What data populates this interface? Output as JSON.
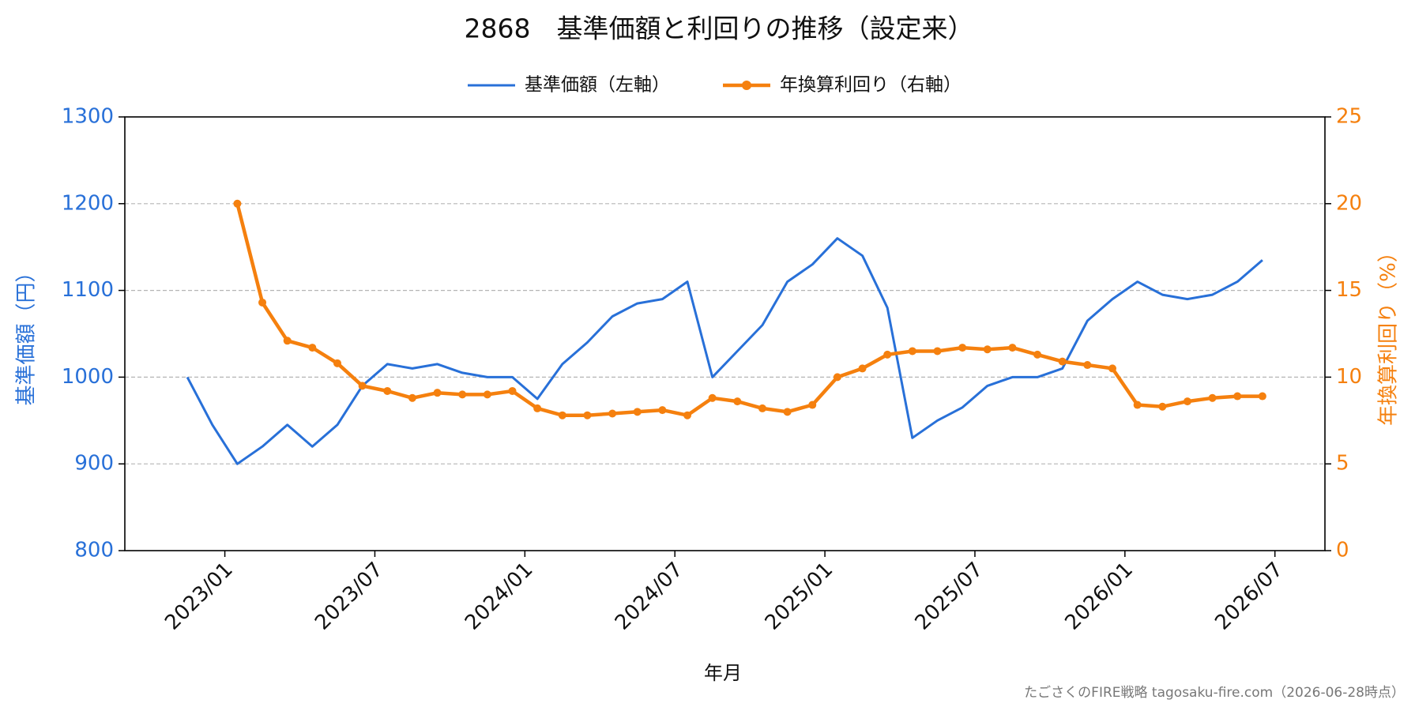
{
  "chart_data": {
    "type": "line",
    "title": "2868　基準価額と利回りの推移（設定来）",
    "xlabel": "年月",
    "ylabel": "基準価額（円）",
    "y2label": "年換算利回り（%）",
    "footer": "たごさくのFIRE戦略 tagosaku-fire.com（2026-06-28時点）",
    "x": [
      "2022/11",
      "2022/12",
      "2023/01",
      "2023/02",
      "2023/03",
      "2023/04",
      "2023/05",
      "2023/06",
      "2023/07",
      "2023/08",
      "2023/09",
      "2023/10",
      "2023/11",
      "2023/12",
      "2024/01",
      "2024/02",
      "2024/03",
      "2024/04",
      "2024/05",
      "2024/06",
      "2024/07",
      "2024/08",
      "2024/09",
      "2024/10",
      "2024/11",
      "2024/12",
      "2025/01",
      "2025/02",
      "2025/03",
      "2025/04",
      "2025/05",
      "2025/06",
      "2025/07",
      "2025/08",
      "2025/09",
      "2025/10",
      "2025/11",
      "2025/12",
      "2026/01",
      "2026/02",
      "2026/03",
      "2026/04",
      "2026/05",
      "2026/06"
    ],
    "xlim": [
      "2022/09",
      "2026/09"
    ],
    "xticks": [
      "2023/01",
      "2023/07",
      "2024/01",
      "2024/07",
      "2025/01",
      "2025/07",
      "2026/01",
      "2026/07"
    ],
    "ylim": [
      800,
      1300
    ],
    "yticks": [
      800,
      900,
      1000,
      1100,
      1200,
      1300
    ],
    "y2lim": [
      0,
      25
    ],
    "y2ticks": [
      0,
      5,
      10,
      15,
      20,
      25
    ],
    "grid": true,
    "legend": "top",
    "series": [
      {
        "name": "基準価額（左軸）",
        "color": "#2870d8",
        "values": [
          1000,
          945,
          900,
          920,
          945,
          920,
          945,
          990,
          1015,
          1010,
          1015,
          1005,
          1000,
          1000,
          975,
          1015,
          1040,
          1070,
          1085,
          1090,
          1110,
          1000,
          1030,
          1060,
          1110,
          1130,
          1160,
          1140,
          1080,
          930,
          950,
          965,
          990,
          1000,
          1000,
          1010,
          1065,
          1090,
          1110,
          1095,
          1090,
          1095,
          1110,
          1135
        ]
      },
      {
        "name": "年換算利回り（右軸）",
        "color": "#f5800e",
        "axis": "y2",
        "marker": true,
        "values": [
          null,
          null,
          20,
          14.3,
          12.1,
          11.7,
          10.8,
          9.5,
          9.2,
          8.8,
          9.1,
          9.0,
          9.0,
          9.2,
          8.2,
          7.8,
          7.8,
          7.9,
          8.0,
          8.1,
          7.8,
          8.8,
          8.6,
          8.2,
          8.0,
          8.4,
          10.0,
          10.5,
          11.3,
          11.5,
          11.5,
          11.7,
          11.6,
          11.7,
          11.3,
          10.9,
          10.7,
          10.5,
          8.4,
          8.3,
          8.6,
          8.8,
          8.9,
          8.9
        ]
      }
    ]
  }
}
